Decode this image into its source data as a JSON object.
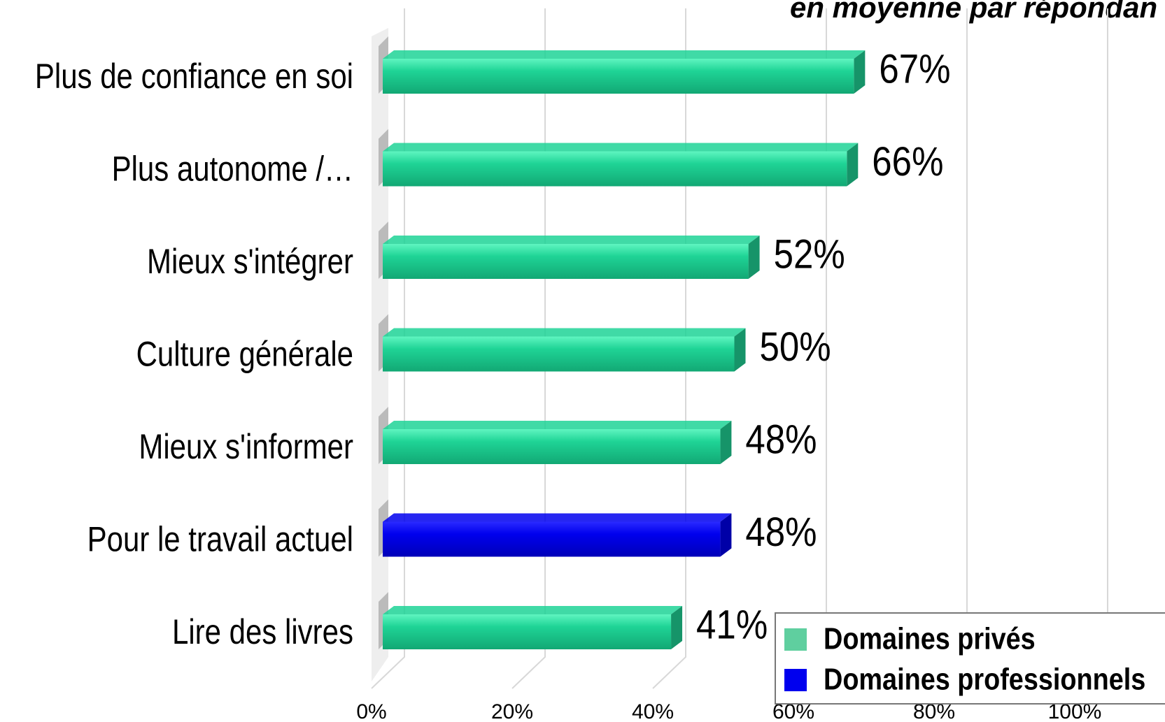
{
  "chart_data": {
    "type": "bar",
    "orientation": "horizontal",
    "subtitle": "en moyenne par répondan",
    "categories": [
      "Plus de confiance en soi",
      "Plus autonome /…",
      "Mieux s'intégrer",
      "Culture générale",
      "Mieux s'informer",
      "Pour le travail actuel",
      "Lire des livres"
    ],
    "series": [
      {
        "name": "Domaines privés",
        "color": "#1fd496",
        "values": [
          67,
          66,
          52,
          50,
          48,
          null,
          41
        ],
        "value_labels": [
          "67%",
          "66%",
          "52%",
          "50%",
          "48%",
          null,
          "41%"
        ]
      },
      {
        "name": "Domaines professionnels",
        "color": "#0000ee",
        "values": [
          null,
          null,
          null,
          null,
          null,
          48,
          null
        ],
        "value_labels": [
          null,
          null,
          null,
          null,
          null,
          "48%",
          null
        ]
      }
    ],
    "xlim": [
      0,
      100
    ],
    "xticks": [
      {
        "value": 0,
        "label": "0%"
      },
      {
        "value": 20,
        "label": "20%"
      },
      {
        "value": 40,
        "label": "40%"
      },
      {
        "value": 60,
        "label": "60%"
      },
      {
        "value": 80,
        "label": "80%"
      },
      {
        "value": 100,
        "label": "100%"
      }
    ],
    "grid": true,
    "legend": "lower right"
  }
}
